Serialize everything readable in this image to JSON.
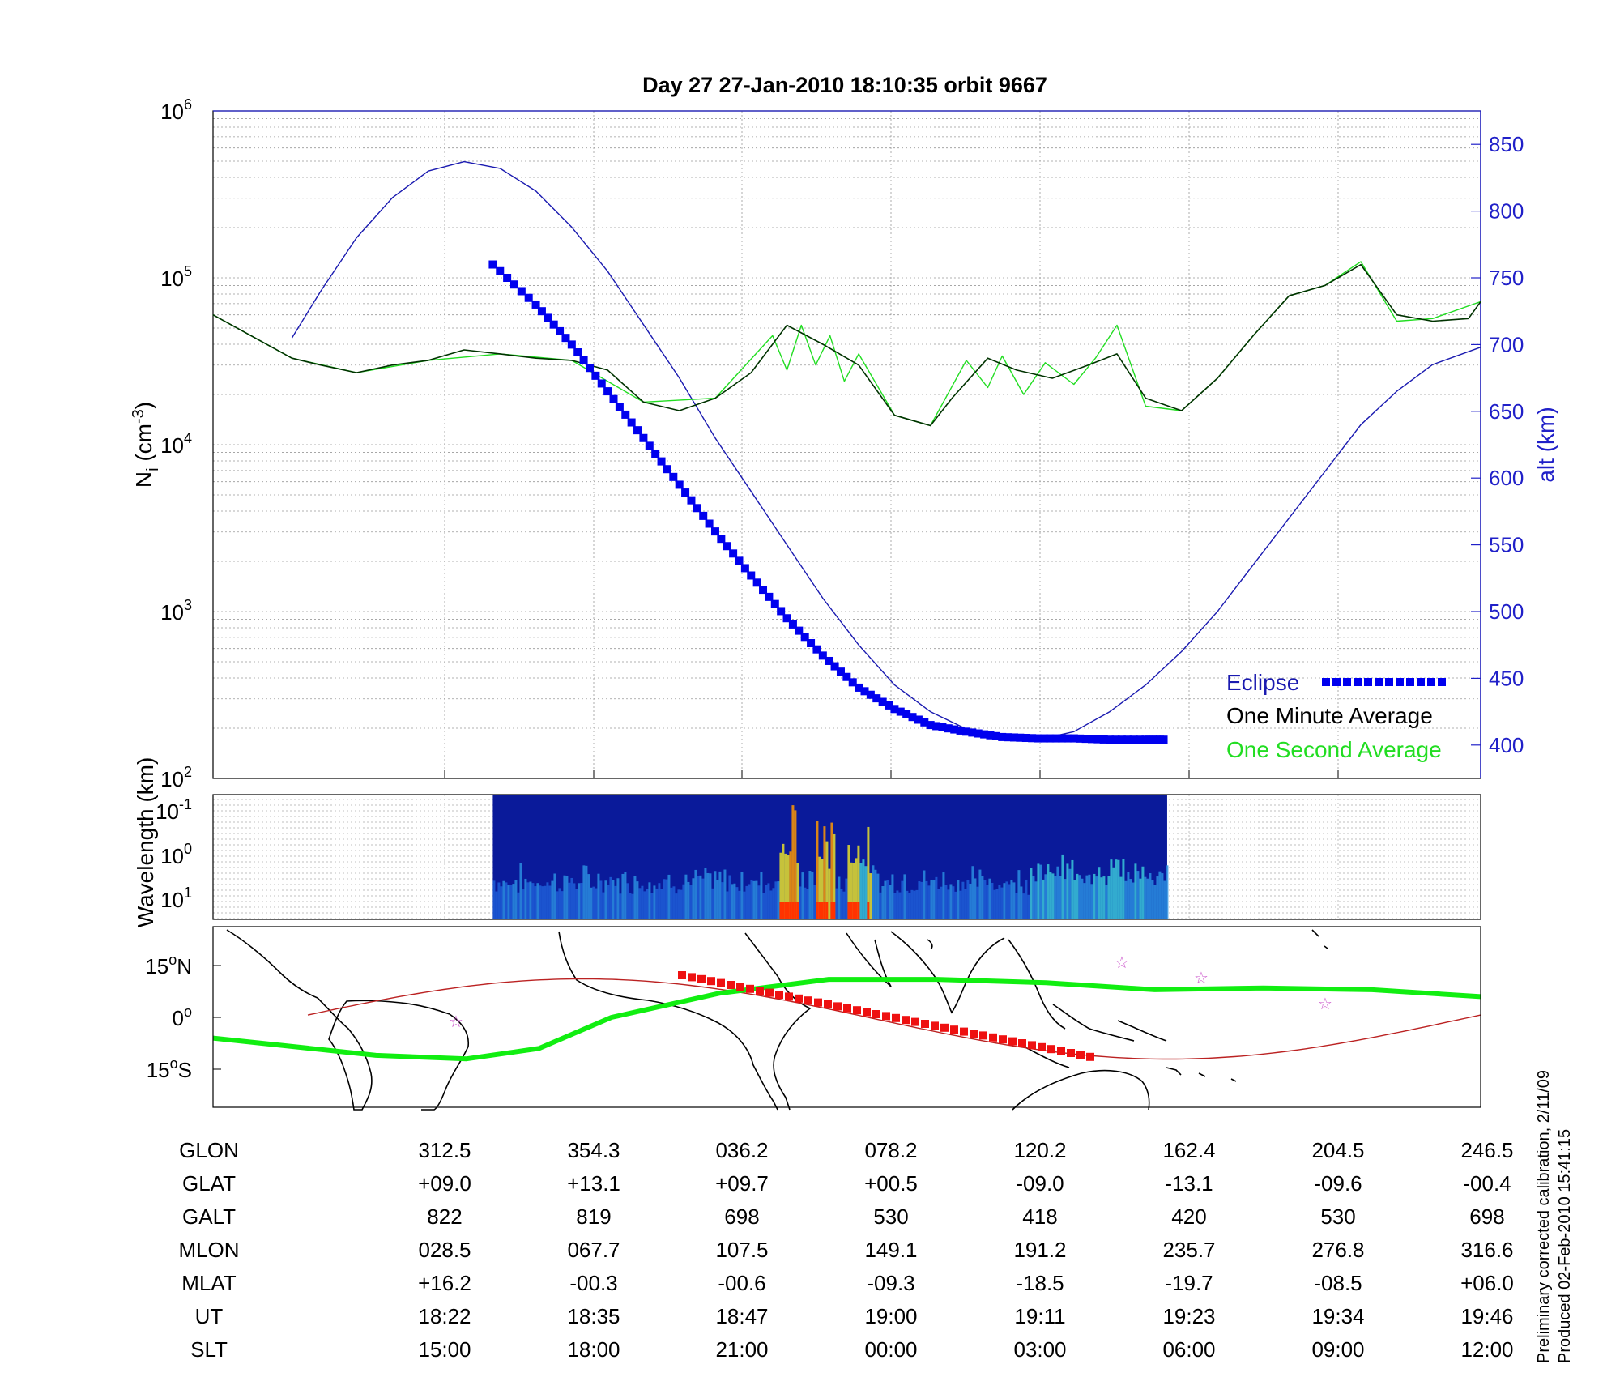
{
  "title": "Day 27  27-Jan-2010 18:10:35   orbit 9667",
  "footer": {
    "line1": "Preliminary corrected calibration, 2/11/09",
    "line2": "Produced 02-Feb-2010 15:41:15"
  },
  "colors": {
    "density_minute": "#003300",
    "density_second": "#22dd22",
    "altitude": "#1a1ab0",
    "eclipse": "#0000ee",
    "axis_blue": "#2020c8",
    "track_green": "#11ee11",
    "track_red": "#ee1111",
    "magnetic_equator": "#bb2222",
    "stars": "#cc55cc"
  },
  "chart_data": [
    {
      "type": "line",
      "panel": "density",
      "ylabel": "N_i (cm^-3)",
      "y2label": "alt (km)",
      "yscale": "log",
      "ylim": [
        100,
        1000000
      ],
      "y2lim": [
        375,
        875
      ],
      "xlim": [
        18.0,
        19.767
      ],
      "y_ticks": [
        {
          "base": "10",
          "exp": "2",
          "value": 100
        },
        {
          "base": "10",
          "exp": "3",
          "value": 1000
        },
        {
          "base": "10",
          "exp": "4",
          "value": 10000
        },
        {
          "base": "10",
          "exp": "5",
          "value": 100000
        },
        {
          "base": "10",
          "exp": "6",
          "value": 1000000
        }
      ],
      "y2_ticks": [
        "400",
        "450",
        "500",
        "550",
        "600",
        "650",
        "700",
        "750",
        "800",
        "850"
      ],
      "grid": true,
      "legend_position": "bottom-right",
      "legend": {
        "eclipse": "Eclipse",
        "minute": "One Minute Average",
        "second": "One Second Average"
      },
      "series": [
        {
          "name": "One Minute Average",
          "x": [
            18.0,
            18.11,
            18.15,
            18.2,
            18.25,
            18.3,
            18.35,
            18.4,
            18.45,
            18.5,
            18.55,
            18.6,
            18.65,
            18.7,
            18.75,
            18.8,
            18.85,
            18.9,
            18.95,
            19.0,
            19.03,
            19.08,
            19.12,
            19.17,
            19.22,
            19.26,
            19.3,
            19.35,
            19.4,
            19.45,
            19.5,
            19.55,
            19.6,
            19.65,
            19.7,
            19.75,
            19.767
          ],
          "y": [
            60000,
            33000,
            30000,
            27000,
            30000,
            32000,
            37000,
            35000,
            33000,
            32000,
            28000,
            18000,
            16000,
            19000,
            27000,
            52000,
            40000,
            30000,
            15000,
            13000,
            19000,
            33000,
            28000,
            25000,
            30000,
            35000,
            19000,
            16000,
            25000,
            45000,
            78000,
            90000,
            120000,
            60000,
            55000,
            57000,
            72000
          ]
        },
        {
          "name": "One Second Average",
          "x": [
            18.0,
            18.11,
            18.2,
            18.3,
            18.4,
            18.5,
            18.6,
            18.7,
            18.78,
            18.8,
            18.82,
            18.84,
            18.86,
            18.88,
            18.9,
            18.95,
            19.0,
            19.05,
            19.08,
            19.1,
            19.13,
            19.16,
            19.2,
            19.23,
            19.26,
            19.3,
            19.35,
            19.4,
            19.45,
            19.5,
            19.55,
            19.6,
            19.65,
            19.7,
            19.767
          ],
          "y": [
            60000,
            33000,
            27000,
            32000,
            35000,
            32000,
            18000,
            19000,
            45000,
            28000,
            52000,
            30000,
            45000,
            24000,
            35000,
            15000,
            13000,
            32000,
            22000,
            34000,
            20000,
            31000,
            23000,
            33000,
            52000,
            17000,
            16000,
            25000,
            45000,
            78000,
            90000,
            125000,
            55000,
            57000,
            72000
          ]
        },
        {
          "name": "alt (km)",
          "axis": "right",
          "x": [
            18.11,
            18.15,
            18.2,
            18.25,
            18.3,
            18.35,
            18.4,
            18.45,
            18.5,
            18.55,
            18.6,
            18.65,
            18.7,
            18.75,
            18.8,
            18.85,
            18.9,
            18.95,
            19.0,
            19.05,
            19.1,
            19.15,
            19.2,
            19.25,
            19.3,
            19.35,
            19.4,
            19.45,
            19.5,
            19.55,
            19.6,
            19.65,
            19.7,
            19.767
          ],
          "y": [
            705,
            740,
            780,
            810,
            830,
            837,
            832,
            815,
            788,
            755,
            715,
            675,
            630,
            590,
            550,
            510,
            475,
            445,
            425,
            412,
            405,
            404,
            410,
            425,
            445,
            470,
            500,
            535,
            570,
            605,
            640,
            665,
            685,
            698
          ]
        },
        {
          "name": "Eclipse",
          "axis": "right",
          "x": [
            18.39,
            18.45,
            18.5,
            18.55,
            18.6,
            18.65,
            18.7,
            18.75,
            18.8,
            18.85,
            18.9,
            18.95,
            19.0,
            19.05,
            19.1,
            19.15,
            19.2,
            19.25,
            19.3,
            19.33
          ],
          "y": [
            760,
            730,
            700,
            665,
            630,
            595,
            560,
            527,
            495,
            467,
            443,
            427,
            415,
            410,
            406,
            405,
            405,
            404,
            404,
            404
          ]
        }
      ]
    },
    {
      "type": "heatmap",
      "panel": "wavelength",
      "ylabel": "Wavelength (km)",
      "yscale": "log",
      "y_ticks": [
        {
          "base": "10",
          "exp": "-1"
        },
        {
          "base": "10",
          "exp": "0"
        },
        {
          "base": "10",
          "exp": "1"
        }
      ],
      "data_window_x": [
        18.39,
        19.33
      ]
    },
    {
      "type": "line",
      "panel": "map",
      "y_ticks": [
        {
          "deg": "15",
          "hemi": "N"
        },
        {
          "deg": "0",
          "hemi": ""
        },
        {
          "deg": "15",
          "hemi": "S"
        }
      ],
      "series": [
        {
          "name": "orbit track",
          "lon_rel": [
            0,
            90,
            140,
            180,
            220,
            280,
            340,
            400,
            460,
            520,
            580,
            640,
            700
          ],
          "lat": [
            -6,
            -11,
            -12,
            -9,
            0,
            7,
            11,
            11,
            10,
            8,
            8.5,
            8,
            6
          ]
        }
      ],
      "stars_count": 4
    }
  ],
  "table": {
    "rows": [
      {
        "label": "GLON",
        "values": [
          "312.5",
          "354.3",
          "036.2",
          "078.2",
          "120.2",
          "162.4",
          "204.5",
          "246.5"
        ]
      },
      {
        "label": "GLAT",
        "values": [
          "+09.0",
          "+13.1",
          "+09.7",
          "+00.5",
          "-09.0",
          "-13.1",
          "-09.6",
          "-00.4"
        ]
      },
      {
        "label": "GALT",
        "values": [
          "822",
          "819",
          "698",
          "530",
          "418",
          "420",
          "530",
          "698"
        ]
      },
      {
        "label": "MLON",
        "values": [
          "028.5",
          "067.7",
          "107.5",
          "149.1",
          "191.2",
          "235.7",
          "276.8",
          "316.6"
        ]
      },
      {
        "label": "MLAT",
        "values": [
          "+16.2",
          "-00.3",
          "-00.6",
          "-09.3",
          "-18.5",
          "-19.7",
          "-08.5",
          "+06.0"
        ]
      },
      {
        "label": "UT",
        "values": [
          "18:22",
          "18:35",
          "18:47",
          "19:00",
          "19:11",
          "19:23",
          "19:34",
          "19:46"
        ]
      },
      {
        "label": "SLT",
        "values": [
          "15:00",
          "18:00",
          "21:00",
          "00:00",
          "03:00",
          "06:00",
          "09:00",
          "12:00"
        ]
      }
    ]
  }
}
